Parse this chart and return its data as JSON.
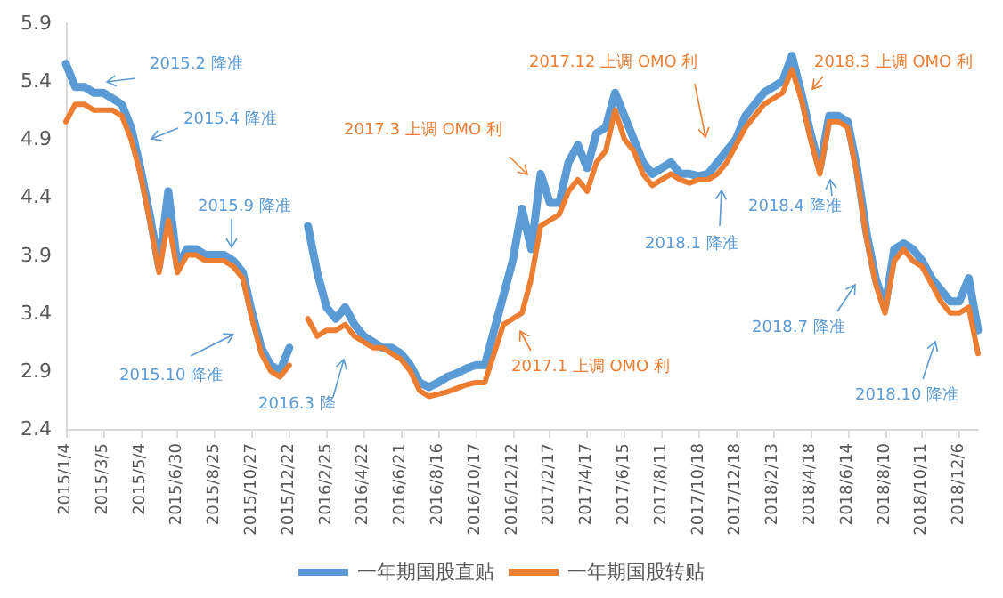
{
  "chart_data": {
    "type": "line",
    "categories": [
      "2015/1/4",
      null,
      null,
      null,
      "2015/3/5",
      null,
      null,
      null,
      "2015/5/4",
      null,
      null,
      null,
      "2015/6/30",
      null,
      null,
      null,
      "2015/8/25",
      null,
      null,
      null,
      "2015/10/27",
      null,
      null,
      null,
      "2015/12/22",
      null,
      null,
      null,
      "2016/2/25",
      null,
      null,
      null,
      "2016/4/22",
      null,
      null,
      null,
      "2016/6/21",
      null,
      null,
      null,
      "2016/8/16",
      null,
      null,
      null,
      "2016/10/17",
      null,
      null,
      null,
      "2016/12/12",
      null,
      null,
      null,
      "2017/2/17",
      null,
      null,
      null,
      "2017/4/17",
      null,
      null,
      null,
      "2017/6/15",
      null,
      null,
      null,
      "2017/8/11",
      null,
      null,
      null,
      "2017/10/18",
      null,
      null,
      null,
      "2017/12/18",
      null,
      null,
      null,
      "2018/2/13",
      null,
      null,
      null,
      "2018/4/18",
      null,
      null,
      null,
      "2018/6/14",
      null,
      null,
      null,
      "2018/8/10",
      null,
      null,
      null,
      "2018/10/11",
      null,
      null,
      null,
      "2018/12/6",
      null,
      null
    ],
    "series": [
      {
        "name": "一年期国股直贴",
        "color": "#5b9bd5",
        "values": [
          5.55,
          5.35,
          5.35,
          5.3,
          5.3,
          5.25,
          5.2,
          5.0,
          4.65,
          4.25,
          3.8,
          4.45,
          3.8,
          3.95,
          3.95,
          3.9,
          3.9,
          3.9,
          3.85,
          3.75,
          3.4,
          3.1,
          2.95,
          2.9,
          3.1,
          null,
          4.15,
          3.75,
          3.45,
          3.35,
          3.45,
          3.3,
          3.2,
          3.15,
          3.1,
          3.1,
          3.05,
          2.95,
          2.8,
          2.76,
          2.8,
          2.85,
          2.88,
          2.92,
          2.95,
          2.95,
          3.25,
          3.55,
          3.85,
          4.3,
          3.95,
          4.6,
          4.35,
          4.35,
          4.7,
          4.85,
          4.65,
          4.95,
          5.0,
          5.3,
          5.1,
          4.9,
          4.7,
          4.6,
          4.65,
          4.7,
          4.6,
          4.6,
          4.58,
          4.6,
          4.7,
          4.8,
          4.9,
          5.1,
          5.2,
          5.3,
          5.35,
          5.4,
          5.62,
          5.3,
          4.95,
          4.65,
          5.1,
          5.1,
          5.05,
          4.65,
          4.1,
          3.7,
          3.45,
          3.95,
          4.0,
          3.95,
          3.85,
          3.7,
          3.6,
          3.5,
          3.5,
          3.7,
          3.25
        ]
      },
      {
        "name": "一年期国股转贴",
        "color": "#ed7d31",
        "values": [
          5.05,
          5.2,
          5.2,
          5.15,
          5.15,
          5.15,
          5.1,
          4.9,
          4.6,
          4.2,
          3.75,
          4.2,
          3.75,
          3.9,
          3.9,
          3.85,
          3.85,
          3.85,
          3.8,
          3.7,
          3.35,
          3.05,
          2.9,
          2.85,
          2.95,
          null,
          3.35,
          3.2,
          3.25,
          3.25,
          3.3,
          3.2,
          3.15,
          3.1,
          3.1,
          3.05,
          3.0,
          2.9,
          2.73,
          2.68,
          2.7,
          2.72,
          2.75,
          2.78,
          2.8,
          2.8,
          3.05,
          3.3,
          3.35,
          3.4,
          3.7,
          4.15,
          4.2,
          4.25,
          4.45,
          4.55,
          4.45,
          4.7,
          4.8,
          5.15,
          4.9,
          4.8,
          4.6,
          4.5,
          4.55,
          4.6,
          4.55,
          4.52,
          4.55,
          4.55,
          4.6,
          4.7,
          4.85,
          5.0,
          5.1,
          5.2,
          5.25,
          5.3,
          5.5,
          5.25,
          4.9,
          4.6,
          5.05,
          5.05,
          5.0,
          4.6,
          4.05,
          3.65,
          3.4,
          3.85,
          3.95,
          3.85,
          3.8,
          3.65,
          3.5,
          3.4,
          3.4,
          3.45,
          3.05
        ]
      }
    ],
    "ylim": [
      2.4,
      5.9
    ],
    "yticks": [
      2.4,
      2.9,
      3.4,
      3.9,
      4.4,
      4.9,
      5.4,
      5.9
    ],
    "grid": false,
    "legend": "bottom",
    "marker": "none",
    "line_style": "solid",
    "annotations": [
      "2015.2 降准",
      "2015.4 降准",
      "2015.9 降准",
      "2015.10 降准",
      "2016.3 降",
      "2017.3 上调 OMO 利",
      "2017.1 上调 OMO 利",
      "2017.12 上调 OMO 利",
      "2018.1 降准",
      "2018.3 上调 OMO 利",
      "2018.4 降准",
      "2018.7 降准",
      "2018.10 降准"
    ]
  }
}
